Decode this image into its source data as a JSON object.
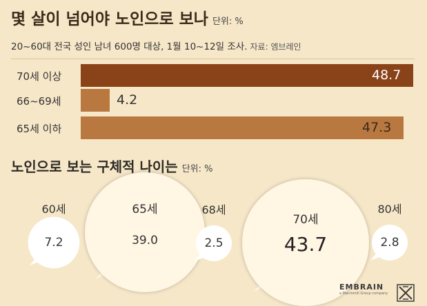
{
  "header": {
    "title": "몇 살이 넘어야 노인으로 보나",
    "unit": "단위: %",
    "subtitle": "20~60대 전국 성인 남녀 600명 대상, 1월 10~12일 조사.",
    "source": "자료: 엠브레인"
  },
  "section2": {
    "title": "노인으로 보는 구체적 나이는",
    "unit": "단위: %"
  },
  "logo": {
    "name": "EMBRAIN",
    "tagline": "a Macromill Group company"
  },
  "colors": {
    "background": "#f6e7c8",
    "bar_dark": "#8a4218",
    "bar_light": "#b87840",
    "bubble_light": "#fff6e4"
  },
  "chart_data": [
    {
      "type": "bar",
      "orientation": "horizontal",
      "categories": [
        "70세 이상",
        "66~69세",
        "65세 이하"
      ],
      "values": [
        48.7,
        4.2,
        47.3
      ],
      "value_labels": [
        "48.7",
        "4.2",
        "47.3"
      ],
      "xlim": [
        0,
        48.7
      ]
    },
    {
      "type": "bubble",
      "categories": [
        "60세",
        "65세",
        "68세",
        "70세",
        "80세"
      ],
      "values": [
        7.2,
        39.0,
        2.5,
        43.7,
        2.8
      ],
      "value_labels": [
        "7.2",
        "39.0",
        "2.5",
        "43.7",
        "2.8"
      ]
    }
  ]
}
